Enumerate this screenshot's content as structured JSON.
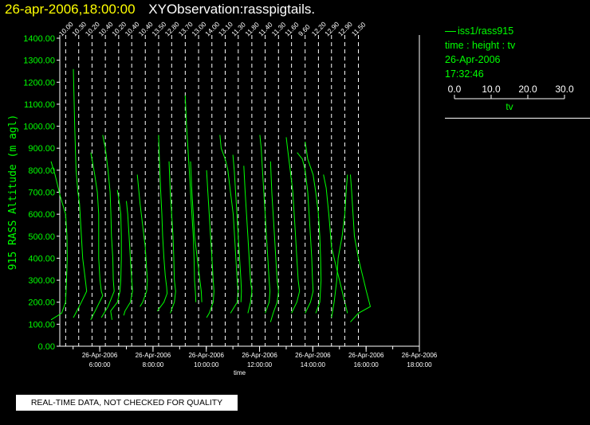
{
  "header": {
    "datetime": "26-apr-2006,18:00:00",
    "observation": "XYObservation:rasspigtails."
  },
  "legend": {
    "series": "iss1/rass915",
    "desc": "time : height : tv",
    "date": "26-Apr-2006",
    "time": "17:32:46",
    "scale_ticks": [
      "0.0",
      "10.0",
      "20.0",
      "30.0"
    ],
    "scale_range": [
      0,
      30
    ],
    "scale_label": "tv"
  },
  "footer": {
    "qc_notice": "REAL-TIME DATA, NOT CHECKED FOR QUALITY"
  },
  "colors": {
    "trace": "#00ff00",
    "axis": "#ffffff",
    "datetime": "#ffff00"
  },
  "chart_data": {
    "type": "line",
    "xlabel": "time",
    "ylabel": "915 RASS Altitude (m agl)",
    "ylim": [
      0,
      1400
    ],
    "yticks": [
      0,
      100,
      200,
      300,
      400,
      500,
      600,
      700,
      800,
      900,
      1000,
      1100,
      1200,
      1300,
      1400
    ],
    "ytick_labels": [
      "0.00",
      "100.00",
      "200.00",
      "300.00",
      "400.00",
      "500.00",
      "600.00",
      "700.00",
      "800.00",
      "900.00",
      "1000.00",
      "1100.00",
      "1200.00",
      "1300.00",
      "1400.00"
    ],
    "xlim_hours": [
      4.5,
      18.0
    ],
    "xticks": [
      {
        "hour": 6,
        "date": "26-Apr-2006",
        "time": "6:00:00"
      },
      {
        "hour": 8,
        "date": "26-Apr-2006",
        "time": "8:00:00"
      },
      {
        "hour": 10,
        "date": "26-Apr-2006",
        "time": "10:00:00"
      },
      {
        "hour": 12,
        "date": "26-Apr-2006",
        "time": "12:00:00"
      },
      {
        "hour": 14,
        "date": "26-Apr-2006",
        "time": "14:00:00"
      },
      {
        "hour": 16,
        "date": "26-Apr-2006",
        "time": "16:00:00"
      },
      {
        "hour": 18,
        "date": "26-Apr-2006",
        "time": "18:00:00"
      }
    ],
    "profiles": [
      {
        "hour": 4.72,
        "label": "10.00",
        "points": [
          [
            -5.5,
            840
          ],
          [
            -4,
            780
          ],
          [
            -2,
            680
          ],
          [
            0,
            600
          ],
          [
            0.5,
            500
          ],
          [
            0.6,
            400
          ],
          [
            0.3,
            300
          ],
          [
            0,
            200
          ],
          [
            -1.5,
            150
          ],
          [
            -5.5,
            120
          ]
        ]
      },
      {
        "hour": 5.21,
        "label": "10.30",
        "points": [
          [
            -2,
            1260
          ],
          [
            -1.5,
            1000
          ],
          [
            -1,
            800
          ],
          [
            -0.3,
            700
          ],
          [
            0.3,
            650
          ],
          [
            1,
            500
          ],
          [
            1.5,
            400
          ],
          [
            2.5,
            300
          ],
          [
            3,
            250
          ],
          [
            1,
            200
          ],
          [
            -2,
            130
          ]
        ]
      },
      {
        "hour": 5.71,
        "label": "10.20",
        "points": [
          [
            -0.5,
            880
          ],
          [
            0,
            850
          ],
          [
            1,
            780
          ],
          [
            2,
            700
          ],
          [
            2.5,
            600
          ],
          [
            2.5,
            500
          ],
          [
            2.5,
            400
          ],
          [
            3,
            300
          ],
          [
            3.5,
            250
          ],
          [
            4,
            230
          ],
          [
            2,
            180
          ],
          [
            -0.5,
            120
          ]
        ]
      },
      {
        "hour": 6.21,
        "label": "10.40",
        "points": [
          [
            -1,
            960
          ],
          [
            0,
            900
          ],
          [
            1,
            800
          ],
          [
            1.8,
            700
          ],
          [
            2.1,
            600
          ],
          [
            2.3,
            500
          ],
          [
            2.8,
            400
          ],
          [
            3,
            300
          ],
          [
            3.3,
            250
          ],
          [
            1,
            180
          ],
          [
            -1.5,
            130
          ]
        ]
      },
      {
        "hour": 6.71,
        "label": "10.20",
        "points": [
          [
            -0.5,
            710
          ],
          [
            0.3,
            650
          ],
          [
            0.8,
            600
          ],
          [
            1,
            500
          ],
          [
            1,
            400
          ],
          [
            0.8,
            300
          ],
          [
            0.5,
            250
          ],
          [
            -0.5,
            200
          ],
          [
            -3,
            160
          ],
          [
            -2.5,
            120
          ]
        ]
      },
      {
        "hour": 7.2,
        "label": "10.40",
        "points": [
          [
            -2,
            660
          ],
          [
            -1.5,
            600
          ],
          [
            -1,
            500
          ],
          [
            -0.5,
            400
          ],
          [
            0,
            300
          ],
          [
            0.3,
            250
          ],
          [
            -0.5,
            200
          ],
          [
            -2.5,
            160
          ],
          [
            -3,
            140
          ]
        ]
      },
      {
        "hour": 7.71,
        "label": "10.40",
        "points": [
          [
            -3,
            780
          ],
          [
            -2,
            650
          ],
          [
            -1,
            550
          ],
          [
            0,
            450
          ],
          [
            0.5,
            350
          ],
          [
            0.8,
            300
          ],
          [
            0.5,
            250
          ],
          [
            -1,
            200
          ],
          [
            -2,
            180
          ]
        ]
      },
      {
        "hour": 8.21,
        "label": "13.50",
        "points": [
          [
            0,
            960
          ],
          [
            0.3,
            850
          ],
          [
            0.8,
            700
          ],
          [
            1.2,
            600
          ],
          [
            1.5,
            500
          ],
          [
            2,
            400
          ],
          [
            2.5,
            320
          ],
          [
            3,
            270
          ],
          [
            3.2,
            240
          ],
          [
            2,
            200
          ],
          [
            -0.5,
            160
          ]
        ]
      },
      {
        "hour": 8.7,
        "label": "12.80",
        "points": [
          [
            -1,
            840
          ],
          [
            -0.5,
            700
          ],
          [
            0,
            600
          ],
          [
            0.5,
            500
          ],
          [
            0.8,
            400
          ],
          [
            1,
            300
          ],
          [
            1.5,
            250
          ],
          [
            1,
            200
          ],
          [
            -0.5,
            150
          ]
        ]
      },
      {
        "hour": 9.21,
        "label": "13.70",
        "points": [
          [
            0,
            1140
          ],
          [
            0.5,
            1000
          ],
          [
            1,
            900
          ],
          [
            1.5,
            800
          ],
          [
            2,
            700
          ],
          [
            2.5,
            600
          ],
          [
            3,
            500
          ],
          [
            3.3,
            400
          ],
          [
            3.5,
            300
          ],
          [
            3.8,
            250
          ],
          [
            4,
            200
          ]
        ]
      },
      {
        "hour": 9.71,
        "label": "13.00",
        "points": [
          [
            -3,
            840
          ],
          [
            -2.5,
            700
          ],
          [
            -2,
            600
          ],
          [
            -1.5,
            500
          ],
          [
            -0.5,
            400
          ],
          [
            0,
            350
          ],
          [
            0.5,
            300
          ],
          [
            1,
            250
          ],
          [
            1.2,
            200
          ]
        ]
      },
      {
        "hour": 10.21,
        "label": "14.00",
        "points": [
          [
            -2,
            800
          ],
          [
            -1.5,
            700
          ],
          [
            -1,
            600
          ],
          [
            -0.5,
            500
          ],
          [
            0,
            400
          ],
          [
            0.5,
            300
          ],
          [
            0.8,
            250
          ],
          [
            0.5,
            200
          ],
          [
            -1,
            150
          ],
          [
            -2,
            130
          ]
        ]
      },
      {
        "hour": 10.71,
        "label": "13.10",
        "points": [
          [
            -2,
            960
          ],
          [
            -1.5,
            900
          ],
          [
            0,
            850
          ],
          [
            1,
            800
          ],
          [
            2,
            700
          ],
          [
            3,
            600
          ],
          [
            3.5,
            500
          ],
          [
            4,
            400
          ],
          [
            4.5,
            300
          ],
          [
            4.8,
            250
          ],
          [
            4.5,
            200
          ],
          [
            2,
            150
          ]
        ]
      },
      {
        "hour": 11.2,
        "label": "11.30",
        "points": [
          [
            -2,
            870
          ],
          [
            -1.5,
            800
          ],
          [
            -1,
            700
          ],
          [
            -0.5,
            600
          ],
          [
            0,
            500
          ],
          [
            0.5,
            400
          ],
          [
            1,
            300
          ],
          [
            1.2,
            250
          ],
          [
            1,
            200
          ]
        ]
      },
      {
        "hour": 11.71,
        "label": "11.80",
        "points": [
          [
            -3,
            820
          ],
          [
            -2.5,
            700
          ],
          [
            -2,
            600
          ],
          [
            -1.5,
            500
          ],
          [
            -1,
            400
          ],
          [
            -0.5,
            300
          ],
          [
            0,
            250
          ],
          [
            -0.5,
            200
          ],
          [
            -1.5,
            150
          ]
        ]
      },
      {
        "hour": 12.21,
        "label": "11.40",
        "points": [
          [
            -2,
            960
          ],
          [
            -1.5,
            900
          ],
          [
            -1,
            800
          ],
          [
            -0.5,
            700
          ],
          [
            0,
            600
          ],
          [
            0.5,
            500
          ],
          [
            1,
            400
          ],
          [
            1.5,
            300
          ],
          [
            1.8,
            250
          ],
          [
            1.5,
            200
          ],
          [
            0,
            150
          ]
        ]
      },
      {
        "hour": 12.71,
        "label": "11.30",
        "points": [
          [
            -3,
            840
          ],
          [
            -2.5,
            700
          ],
          [
            -2,
            600
          ],
          [
            -1.5,
            500
          ],
          [
            -1,
            400
          ],
          [
            -0.5,
            300
          ],
          [
            0,
            250
          ],
          [
            -0.5,
            200
          ],
          [
            -2,
            150
          ],
          [
            -3,
            110
          ]
        ]
      },
      {
        "hour": 13.2,
        "label": "11.60",
        "points": [
          [
            -2,
            950
          ],
          [
            -1.5,
            900
          ],
          [
            -0.5,
            800
          ],
          [
            0.5,
            700
          ],
          [
            1,
            600
          ],
          [
            1.5,
            500
          ],
          [
            2,
            400
          ],
          [
            2.5,
            300
          ],
          [
            3,
            250
          ],
          [
            2,
            200
          ],
          [
            0,
            150
          ]
        ]
      },
      {
        "hour": 13.71,
        "label": "9.60",
        "points": [
          [
            -3,
            880
          ],
          [
            -1,
            850
          ],
          [
            0,
            800
          ],
          [
            1,
            700
          ],
          [
            1.5,
            600
          ],
          [
            2,
            500
          ],
          [
            2.5,
            400
          ],
          [
            2.8,
            300
          ],
          [
            3,
            250
          ],
          [
            2,
            200
          ],
          [
            0,
            150
          ]
        ]
      },
      {
        "hour": 14.21,
        "label": "12.20",
        "points": [
          [
            -5,
            930
          ],
          [
            -4,
            850
          ],
          [
            -2,
            780
          ],
          [
            -1,
            700
          ],
          [
            0,
            600
          ],
          [
            0.5,
            500
          ],
          [
            0.8,
            400
          ],
          [
            1,
            300
          ],
          [
            0.5,
            200
          ],
          [
            -1,
            150
          ]
        ]
      },
      {
        "hour": 14.7,
        "label": "12.90",
        "points": [
          [
            -3,
            780
          ],
          [
            -2,
            720
          ],
          [
            -1,
            600
          ],
          [
            0,
            450
          ],
          [
            1,
            400
          ],
          [
            2,
            350
          ],
          [
            3,
            300
          ],
          [
            4,
            250
          ],
          [
            5,
            200
          ],
          [
            6,
            150
          ]
        ]
      },
      {
        "hour": 15.2,
        "label": "12.90",
        "points": [
          [
            -5,
            130
          ],
          [
            -4,
            200
          ],
          [
            -3,
            300
          ],
          [
            -2.5,
            400
          ],
          [
            -1,
            500
          ],
          [
            0,
            600
          ],
          [
            0.5,
            700
          ],
          [
            1,
            780
          ]
        ]
      },
      {
        "hour": 15.71,
        "label": "11.50",
        "points": [
          [
            -3,
            780
          ],
          [
            -2.5,
            700
          ],
          [
            -2,
            600
          ],
          [
            -1.5,
            500
          ],
          [
            0,
            400
          ],
          [
            1,
            350
          ],
          [
            2,
            300
          ],
          [
            3,
            250
          ],
          [
            4.5,
            180
          ],
          [
            0,
            150
          ],
          [
            -3,
            110
          ]
        ]
      }
    ]
  }
}
